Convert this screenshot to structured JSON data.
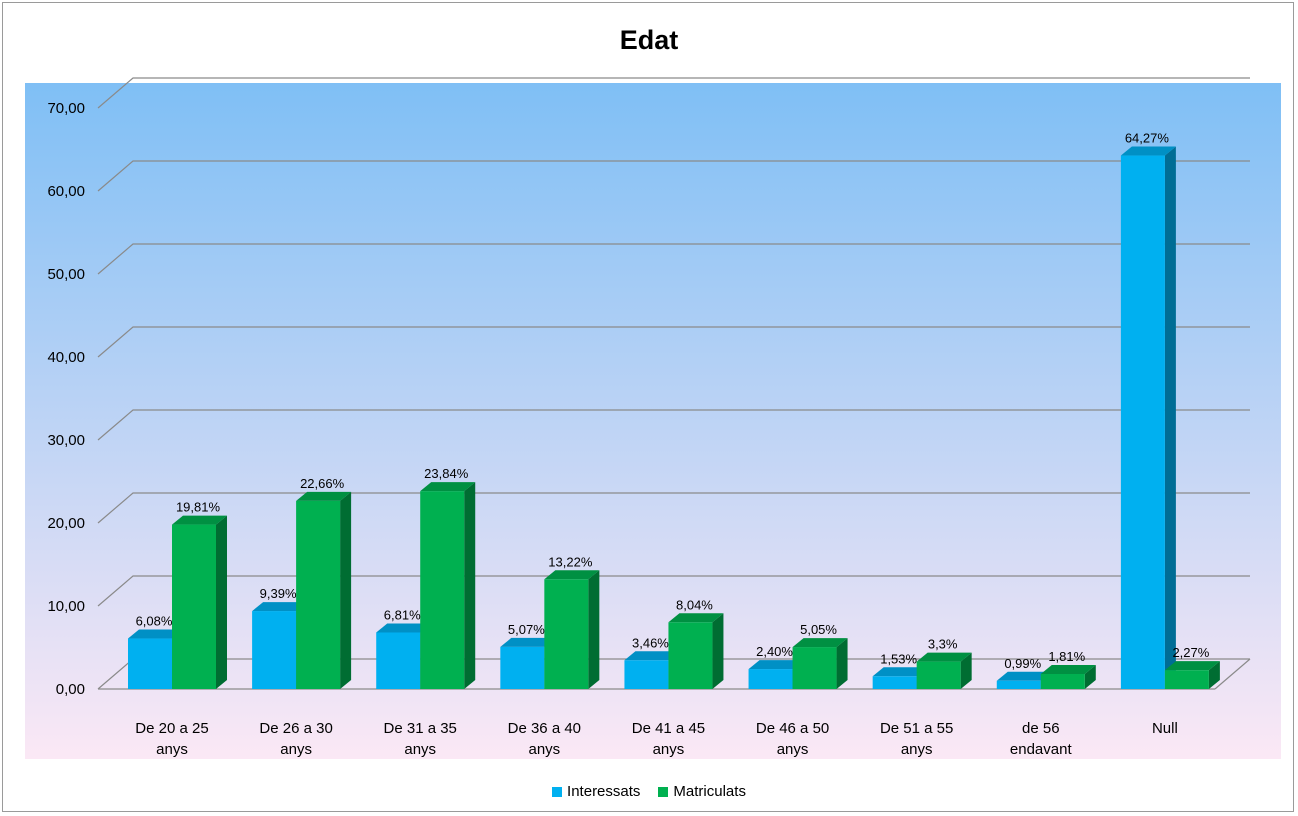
{
  "chart_data": {
    "type": "bar",
    "title": "Edat",
    "categories": [
      [
        "De 20 a 25",
        "anys"
      ],
      [
        "De 26 a 30",
        "anys"
      ],
      [
        "De 31 a 35",
        "anys"
      ],
      [
        "De 36 a 40",
        "anys"
      ],
      [
        "De 41 a 45",
        "anys"
      ],
      [
        "De 46 a 50",
        "anys"
      ],
      [
        "De 51 a 55",
        "anys"
      ],
      [
        "de 56",
        "endavant"
      ],
      [
        "Null"
      ]
    ],
    "series": [
      {
        "name": "Interessats",
        "color": "#00b0f0",
        "values": [
          6.08,
          9.39,
          6.81,
          5.07,
          3.46,
          2.4,
          1.53,
          0.99,
          64.27
        ],
        "labels": [
          "6,08%",
          "9,39%",
          "6,81%",
          "5,07%",
          "3,46%",
          "2,40%",
          "1,53%",
          "0,99%",
          "64,27%"
        ]
      },
      {
        "name": "Matriculats",
        "color": "#00b050",
        "values": [
          19.81,
          22.66,
          23.84,
          13.22,
          8.04,
          5.05,
          3.3,
          1.81,
          2.27
        ],
        "labels": [
          "19,81%",
          "22,66%",
          "23,84%",
          "13,22%",
          "8,04%",
          "5,05%",
          "3,3%",
          "1,81%",
          "2,27%"
        ]
      }
    ],
    "ylim": [
      0,
      70
    ],
    "yticks": [
      "0,00",
      "10,00",
      "20,00",
      "30,00",
      "40,00",
      "50,00",
      "60,00",
      "70,00"
    ],
    "grid": true,
    "legend_position": "bottom",
    "style": "3d-clustered-column",
    "background_gradient": [
      "#7fbff5",
      "#fbe8f5"
    ]
  }
}
